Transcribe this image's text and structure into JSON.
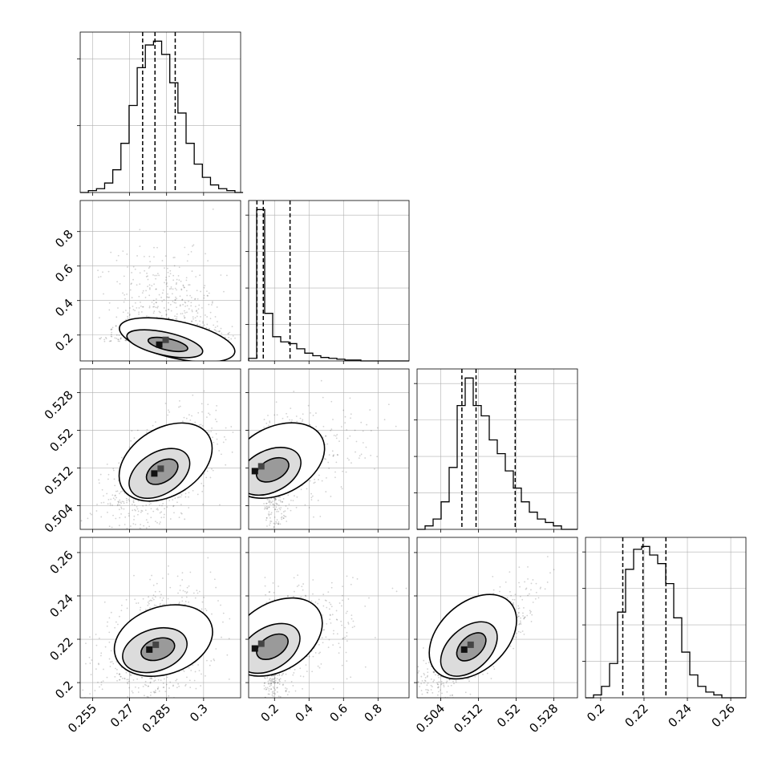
{
  "figure": {
    "kind": "corner-plot",
    "histogram_style": "step",
    "quantile_line_style": "dashed",
    "contour_fill": "grayscale",
    "scatter_points": "light gray",
    "grid": true
  },
  "chart_data": [
    {
      "type": "bar",
      "panel": "hist-0",
      "x_range": [
        0.25,
        0.315
      ],
      "bin_edges": [
        0.25,
        0.2533,
        0.2566,
        0.2599,
        0.2632,
        0.2665,
        0.2698,
        0.2731,
        0.2764,
        0.2797,
        0.283,
        0.2863,
        0.2896,
        0.2929,
        0.2962,
        0.2995,
        0.3028,
        0.3061,
        0.3094,
        0.3127,
        0.316
      ],
      "values": [
        0,
        1,
        2,
        5,
        12,
        26,
        46,
        66,
        78,
        80,
        73,
        58,
        42,
        26,
        15,
        8,
        4,
        2,
        1,
        0
      ],
      "quantiles": [
        0.2753,
        0.2803,
        0.2885
      ],
      "yticks_unlabeled": 2
    },
    {
      "type": "bar",
      "panel": "hist-1",
      "x_range": [
        0.05,
        0.98
      ],
      "bin_edges": [
        0.05,
        0.0965,
        0.143,
        0.1895,
        0.236,
        0.2825,
        0.329,
        0.3755,
        0.422,
        0.4685,
        0.515,
        0.5615,
        0.608,
        0.6545,
        0.701,
        0.7475,
        0.794,
        0.8405,
        0.887,
        0.9335,
        0.98
      ],
      "values": [
        3,
        175,
        55,
        28,
        22,
        20,
        14,
        9,
        6,
        4,
        3,
        2,
        1,
        1,
        0,
        0,
        0,
        0,
        0,
        0
      ],
      "quantiles": [
        0.098,
        0.135,
        0.29
      ],
      "xticks": [
        0.2,
        0.4,
        0.6,
        0.8
      ]
    },
    {
      "type": "bar",
      "panel": "hist-2",
      "x_range": [
        0.499,
        0.533
      ],
      "bin_edges": [
        0.499,
        0.5007,
        0.5024,
        0.5041,
        0.5058,
        0.5075,
        0.5092,
        0.5109,
        0.5126,
        0.5143,
        0.516,
        0.5177,
        0.5194,
        0.5211,
        0.5228,
        0.5245,
        0.5262,
        0.5279,
        0.5296,
        0.5313,
        0.533
      ],
      "values": [
        0,
        1,
        3,
        8,
        18,
        36,
        44,
        36,
        33,
        26,
        22,
        17,
        12,
        8,
        5,
        3,
        2,
        1,
        0,
        0
      ],
      "quantiles": [
        0.5085,
        0.5115,
        0.5198
      ],
      "yticks_unlabeled": 4
    },
    {
      "type": "bar",
      "panel": "hist-3",
      "x_range": [
        0.193,
        0.267
      ],
      "bin_edges": [
        0.193,
        0.1967,
        0.2004,
        0.2041,
        0.2078,
        0.2115,
        0.2152,
        0.2189,
        0.2226,
        0.2263,
        0.23,
        0.2337,
        0.2374,
        0.2411,
        0.2448,
        0.2485,
        0.2522,
        0.2559,
        0.2596,
        0.2633,
        0.267
      ],
      "values": [
        0,
        1,
        4,
        12,
        30,
        45,
        52,
        53,
        50,
        47,
        40,
        28,
        16,
        8,
        4,
        2,
        1,
        0,
        0,
        0
      ],
      "quantiles": [
        0.2102,
        0.2195,
        0.2301
      ],
      "xticks": [
        0.2,
        0.22,
        0.24,
        0.26
      ]
    },
    {
      "type": "scatter",
      "panel": "pair-1-0",
      "x_range": [
        0.25,
        0.315
      ],
      "y_range": [
        0.05,
        0.98
      ],
      "yticks": [
        0.2,
        0.4,
        0.6,
        0.8
      ],
      "density_peak": [
        0.283,
        0.135
      ],
      "correlation": -0.2,
      "contour_levels": 2
    },
    {
      "type": "scatter",
      "panel": "pair-2-0",
      "x_range": [
        0.25,
        0.315
      ],
      "y_range": [
        0.499,
        0.533
      ],
      "yticks": [
        0.504,
        0.512,
        0.52,
        0.528
      ],
      "density_peak": [
        0.281,
        0.5105
      ],
      "correlation": 0.55,
      "contour_levels": 2
    },
    {
      "type": "scatter",
      "panel": "pair-2-1",
      "x_range": [
        0.05,
        0.98
      ],
      "y_range": [
        0.499,
        0.533
      ],
      "density_peak": [
        0.1,
        0.511
      ],
      "correlation": 0.45,
      "contour_levels": 2
    },
    {
      "type": "scatter",
      "panel": "pair-3-0",
      "x_range": [
        0.25,
        0.315
      ],
      "y_range": [
        0.193,
        0.267
      ],
      "yticks": [
        0.2,
        0.22,
        0.24,
        0.26
      ],
      "xticks": [
        0.255,
        0.27,
        0.285,
        0.3
      ],
      "density_peak": [
        0.279,
        0.2145
      ],
      "correlation": 0.3,
      "contour_levels": 2
    },
    {
      "type": "scatter",
      "panel": "pair-3-1",
      "x_range": [
        0.05,
        0.98
      ],
      "y_range": [
        0.193,
        0.267
      ],
      "xticks": [
        0.2,
        0.4,
        0.6,
        0.8
      ],
      "density_peak": [
        0.1,
        0.215
      ],
      "correlation": 0.55,
      "contour_levels": 2
    },
    {
      "type": "scatter",
      "panel": "pair-3-2",
      "x_range": [
        0.499,
        0.533
      ],
      "y_range": [
        0.193,
        0.267
      ],
      "xticks": [
        0.504,
        0.512,
        0.52,
        0.528
      ],
      "density_peak": [
        0.5095,
        0.2145
      ],
      "correlation": 0.8,
      "contour_levels": 2
    }
  ]
}
